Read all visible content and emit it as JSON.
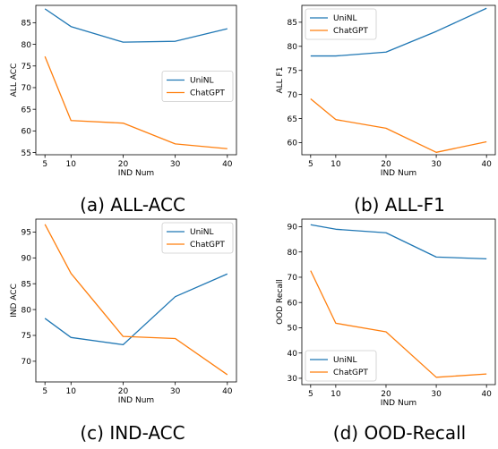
{
  "colors": {
    "uninl": "#1f77b4",
    "chatgpt": "#ff7f0e"
  },
  "chart_data": [
    {
      "type": "line",
      "caption": "(a) ALL-ACC",
      "xlabel": "IND Num",
      "ylabel": "ALL ACC",
      "x": [
        5,
        10,
        20,
        30,
        40
      ],
      "xticks": [
        5,
        10,
        20,
        30,
        40
      ],
      "yticks": [
        55,
        60,
        65,
        70,
        75,
        80,
        85
      ],
      "ylim": [
        54.5,
        89
      ],
      "legend": "center-right",
      "series": [
        {
          "name": "UniNL",
          "values": [
            88.2,
            84.1,
            80.5,
            80.7,
            83.6
          ]
        },
        {
          "name": "ChatGPT",
          "values": [
            77.2,
            62.4,
            61.8,
            57.0,
            55.9
          ]
        }
      ]
    },
    {
      "type": "line",
      "caption": "(b) ALL-F1",
      "xlabel": "IND Num",
      "ylabel": "ALL F1",
      "x": [
        5,
        10,
        20,
        30,
        40
      ],
      "xticks": [
        5,
        10,
        20,
        30,
        40
      ],
      "yticks": [
        60,
        65,
        70,
        75,
        80,
        85
      ],
      "ylim": [
        57.5,
        88.5
      ],
      "legend": "top-left",
      "series": [
        {
          "name": "UniNL",
          "values": [
            78.0,
            78.0,
            78.8,
            83.1,
            87.9
          ]
        },
        {
          "name": "ChatGPT",
          "values": [
            69.1,
            64.8,
            63.0,
            58.0,
            60.2
          ]
        }
      ]
    },
    {
      "type": "line",
      "caption": "(c) IND-ACC",
      "xlabel": "IND Num",
      "ylabel": "IND ACC",
      "x": [
        5,
        10,
        20,
        30,
        40
      ],
      "xticks": [
        5,
        10,
        20,
        30,
        40
      ],
      "yticks": [
        70,
        75,
        80,
        85,
        90,
        95
      ],
      "ylim": [
        66,
        97.5
      ],
      "legend": "top-right",
      "series": [
        {
          "name": "UniNL",
          "values": [
            78.3,
            74.6,
            73.2,
            82.5,
            86.9
          ]
        },
        {
          "name": "ChatGPT",
          "values": [
            96.5,
            87.0,
            74.8,
            74.4,
            67.4
          ]
        }
      ]
    },
    {
      "type": "line",
      "caption": "(d) OOD-Recall",
      "xlabel": "IND Num",
      "ylabel": "OOD Recall",
      "x": [
        5,
        10,
        20,
        30,
        40
      ],
      "xticks": [
        5,
        10,
        20,
        30,
        40
      ],
      "yticks": [
        30,
        40,
        50,
        60,
        70,
        80,
        90
      ],
      "ylim": [
        27.5,
        93
      ],
      "legend": "bottom-left",
      "series": [
        {
          "name": "UniNL",
          "values": [
            90.8,
            89.0,
            87.6,
            78.0,
            77.3
          ]
        },
        {
          "name": "ChatGPT",
          "values": [
            72.6,
            51.8,
            48.4,
            30.4,
            31.7
          ]
        }
      ]
    }
  ]
}
